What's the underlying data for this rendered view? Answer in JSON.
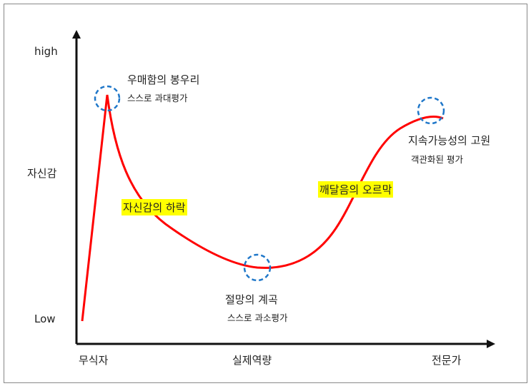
{
  "y_axis": {
    "high": "high",
    "label": "자신감",
    "low": "Low"
  },
  "x_axis": {
    "start": "무식자",
    "middle": "실제역량",
    "end": "전문가"
  },
  "annotations": {
    "peak": {
      "title": "우매함의 봉우리",
      "subtitle": "스스로 과대평가"
    },
    "valley": {
      "title": "절망의 계곡",
      "subtitle": "스스로 과소평가"
    },
    "plateau": {
      "title": "지속가능성의 고원",
      "subtitle": "객관화된 평가"
    },
    "decline": "자신감의 하락",
    "rise": "깨달음의 오르막"
  },
  "colors": {
    "curve": "#ff0000",
    "circle": "#1f77c9",
    "highlight": "#ffff00",
    "axis": "#111111"
  }
}
